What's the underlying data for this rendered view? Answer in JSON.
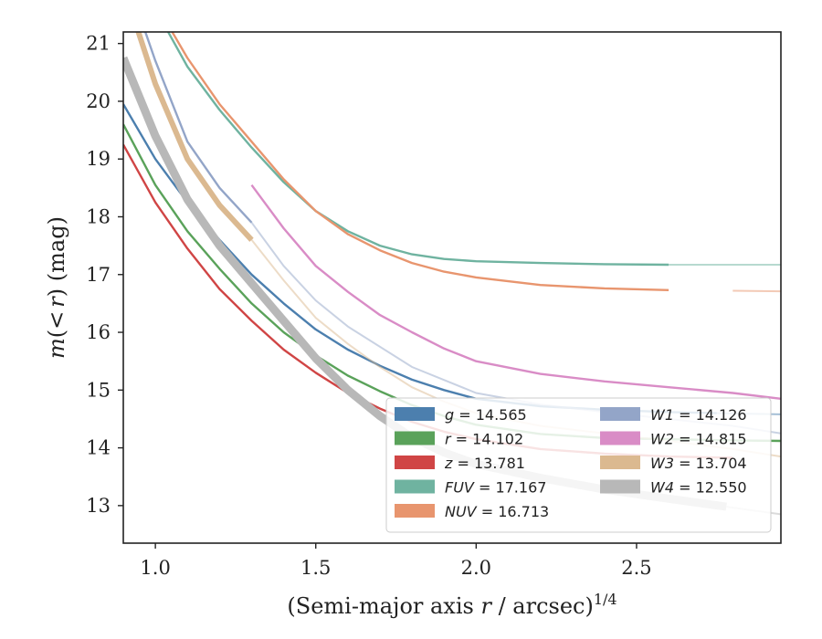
{
  "chart_data": {
    "type": "line",
    "xlabel": "(Semi-major axis r / arcsec)^1/4",
    "xlabel_parts": {
      "prefix": "(Semi-major axis ",
      "var": "r",
      "suffix": " / arcsec)",
      "exp": "1/4"
    },
    "ylabel": "m(< r) (mag)",
    "ylabel_parts": {
      "m": "m",
      "open": "(",
      "lt": "<",
      "r": "r",
      "close": ")",
      "unit": " (mag)"
    },
    "xlim": [
      0.9,
      2.95
    ],
    "ylim": [
      21.2,
      12.35
    ],
    "y_inverted": true,
    "x_ticks": [
      {
        "v": 1.0,
        "label": "1.0"
      },
      {
        "v": 1.5,
        "label": "1.5"
      },
      {
        "v": 2.0,
        "label": "2.0"
      },
      {
        "v": 2.5,
        "label": "2.5"
      }
    ],
    "y_ticks": [
      {
        "v": 13,
        "label": "13"
      },
      {
        "v": 14,
        "label": "14"
      },
      {
        "v": 15,
        "label": "15"
      },
      {
        "v": 16,
        "label": "16"
      },
      {
        "v": 17,
        "label": "17"
      },
      {
        "v": 18,
        "label": "18"
      },
      {
        "v": 19,
        "label": "19"
      },
      {
        "v": 20,
        "label": "20"
      },
      {
        "v": 21,
        "label": "21"
      }
    ],
    "grid": false,
    "legend_position": "lower-right",
    "legend_columns": 2,
    "series": [
      {
        "name": "g",
        "value": "14.565",
        "color": "#4c7fae",
        "x": [
          0.9,
          1.0,
          1.1,
          1.2,
          1.3,
          1.4,
          1.5,
          1.6,
          1.7,
          1.8,
          1.9,
          2.0,
          2.2,
          2.4,
          2.6,
          2.75,
          2.95
        ],
        "y": [
          19.95,
          19.0,
          18.25,
          17.6,
          17.0,
          16.5,
          16.05,
          15.7,
          15.42,
          15.18,
          15.0,
          14.85,
          14.72,
          14.66,
          14.62,
          14.6,
          14.58
        ],
        "faint_from": 2.75
      },
      {
        "name": "r",
        "value": "14.102",
        "color": "#5aa25a",
        "x": [
          0.9,
          1.0,
          1.1,
          1.2,
          1.3,
          1.4,
          1.5,
          1.6,
          1.7,
          1.8,
          1.9,
          2.0,
          2.2,
          2.4,
          2.6,
          2.8,
          2.95
        ],
        "y": [
          19.6,
          18.55,
          17.75,
          17.1,
          16.5,
          16.0,
          15.6,
          15.25,
          14.98,
          14.74,
          14.55,
          14.4,
          14.24,
          14.17,
          14.15,
          14.13,
          14.12
        ],
        "faint_from": 2.95
      },
      {
        "name": "z",
        "value": "13.781",
        "color": "#d04545",
        "x": [
          0.9,
          1.0,
          1.1,
          1.2,
          1.3,
          1.4,
          1.5,
          1.6,
          1.7,
          1.8,
          1.9,
          2.0,
          2.2,
          2.4,
          2.6,
          2.8,
          2.95
        ],
        "y": [
          19.25,
          18.25,
          17.45,
          16.75,
          16.2,
          15.7,
          15.3,
          14.95,
          14.68,
          14.45,
          14.28,
          14.15,
          13.98,
          13.9,
          13.85,
          13.83,
          13.82
        ],
        "faint_from": 2.82
      },
      {
        "name": "FUV",
        "value": "17.167",
        "color": "#6fb3a0",
        "x": [
          1.0,
          1.1,
          1.2,
          1.3,
          1.4,
          1.5,
          1.6,
          1.7,
          1.8,
          1.9,
          2.0,
          2.2,
          2.4,
          2.6,
          2.8,
          2.95
        ],
        "y": [
          21.6,
          20.6,
          19.85,
          19.2,
          18.6,
          18.1,
          17.75,
          17.5,
          17.35,
          17.27,
          17.23,
          17.2,
          17.18,
          17.17,
          17.17,
          17.17
        ],
        "faint_from": 2.6
      },
      {
        "name": "NUV",
        "value": "16.713",
        "color": "#e8956e",
        "x": [
          1.0,
          1.1,
          1.2,
          1.3,
          1.4,
          1.5,
          1.6,
          1.7,
          1.8,
          1.9,
          2.0,
          2.2,
          2.4,
          2.6,
          2.8,
          2.95
        ],
        "y": [
          21.7,
          20.75,
          19.95,
          19.3,
          18.65,
          18.1,
          17.7,
          17.42,
          17.2,
          17.05,
          16.95,
          16.82,
          16.76,
          16.73,
          16.72,
          16.71
        ],
        "faint_from": 2.78
      },
      {
        "name": "W1",
        "value": "14.126",
        "color": "#93a5c8",
        "x": [
          0.9,
          1.0,
          1.1,
          1.2,
          1.3,
          1.4,
          1.5,
          1.6,
          1.8,
          2.0,
          2.2,
          2.4,
          2.6,
          2.8,
          2.95
        ],
        "y": [
          22.3,
          20.7,
          19.3,
          18.5,
          17.9,
          17.15,
          16.55,
          16.1,
          15.4,
          14.95,
          14.75,
          14.62,
          14.5,
          14.38,
          14.25
        ],
        "faint_from": 1.3
      },
      {
        "name": "W2",
        "value": "14.815",
        "color": "#d98cc6",
        "x": [
          1.3,
          1.4,
          1.5,
          1.6,
          1.7,
          1.8,
          1.9,
          2.0,
          2.2,
          2.4,
          2.6,
          2.8,
          2.95
        ],
        "y": [
          18.55,
          17.8,
          17.15,
          16.7,
          16.3,
          16.0,
          15.72,
          15.5,
          15.28,
          15.15,
          15.05,
          14.95,
          14.85
        ],
        "faint_from": 2.95
      },
      {
        "name": "W3",
        "value": "13.704",
        "color": "#dbb990",
        "x": [
          0.9,
          1.0,
          1.1,
          1.2,
          1.3,
          1.4,
          1.5,
          1.6,
          1.7,
          1.8,
          1.9,
          2.0,
          2.2,
          2.4,
          2.6,
          2.8,
          2.95
        ],
        "y": [
          22.0,
          20.3,
          19.0,
          18.2,
          17.6,
          16.9,
          16.25,
          15.8,
          15.4,
          15.05,
          14.8,
          14.6,
          14.38,
          14.25,
          14.12,
          13.98,
          13.85
        ],
        "faint_from": 1.3
      },
      {
        "name": "W4",
        "value": "12.550",
        "color": "#b8b8b8",
        "x": [
          0.9,
          1.0,
          1.1,
          1.2,
          1.3,
          1.4,
          1.5,
          1.6,
          1.7,
          1.8,
          1.9,
          2.0,
          2.2,
          2.4,
          2.6,
          2.78,
          2.95
        ],
        "y": [
          20.75,
          19.4,
          18.3,
          17.5,
          16.85,
          16.2,
          15.55,
          15.0,
          14.55,
          14.18,
          13.92,
          13.72,
          13.48,
          13.28,
          13.12,
          12.98,
          12.85
        ],
        "faint_from": 2.78
      }
    ]
  }
}
